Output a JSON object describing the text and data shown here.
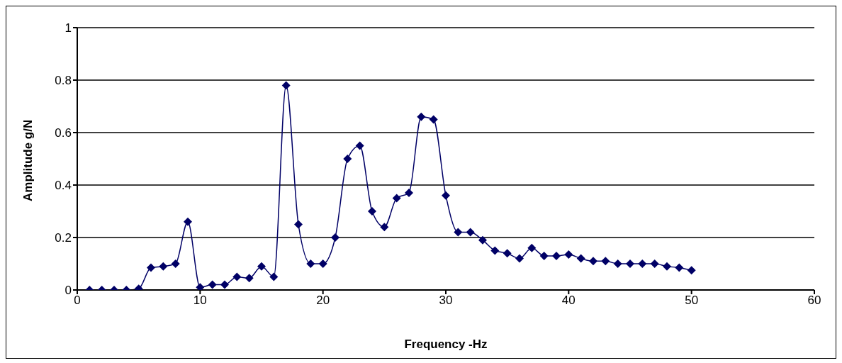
{
  "chart_data": {
    "type": "line",
    "xlabel": "Frequency -Hz",
    "ylabel": "Amplitude g/N",
    "x": [
      1,
      2,
      3,
      4,
      5,
      6,
      7,
      8,
      9,
      10,
      11,
      12,
      13,
      14,
      15,
      16,
      17,
      18,
      19,
      20,
      21,
      22,
      23,
      24,
      25,
      26,
      27,
      28,
      29,
      30,
      31,
      32,
      33,
      34,
      35,
      36,
      37,
      38,
      39,
      40,
      41,
      42,
      43,
      44,
      45,
      46,
      47,
      48,
      49,
      50
    ],
    "series": [
      {
        "color": "#000066",
        "values": [
          0,
          0,
          0,
          0,
          0.005,
          0.085,
          0.09,
          0.1,
          0.26,
          0.01,
          0.02,
          0.02,
          0.05,
          0.045,
          0.09,
          0.05,
          0.78,
          0.25,
          0.1,
          0.1,
          0.2,
          0.5,
          0.55,
          0.3,
          0.24,
          0.35,
          0.37,
          0.66,
          0.65,
          0.36,
          0.22,
          0.22,
          0.19,
          0.15,
          0.14,
          0.12,
          0.16,
          0.13,
          0.13,
          0.135,
          0.12,
          0.11,
          0.11,
          0.1,
          0.1,
          0.1,
          0.1,
          0.09,
          0.085,
          0.075
        ]
      }
    ],
    "xlim": [
      0,
      60
    ],
    "xticks": [
      0,
      10,
      20,
      30,
      40,
      50,
      60
    ],
    "ylim": [
      0,
      1
    ],
    "yticks": [
      0,
      0.2,
      0.4,
      0.6,
      0.8,
      1
    ],
    "grid": "y",
    "marker": "diamond",
    "line_style": "solid",
    "legend": false
  }
}
